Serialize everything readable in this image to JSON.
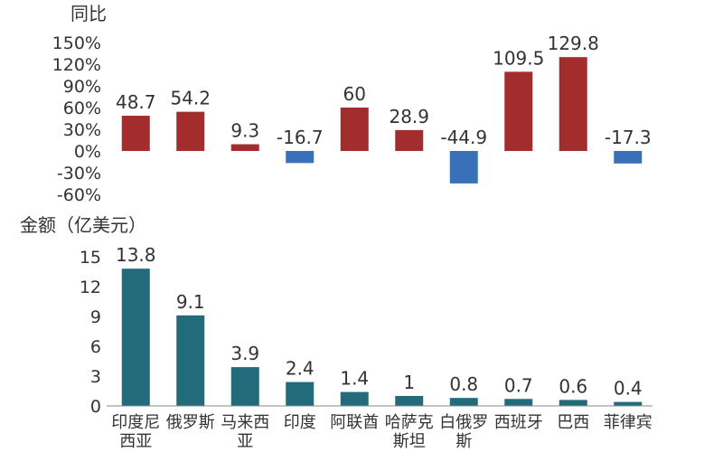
{
  "chart_data": [
    {
      "type": "bar",
      "ylabel": "同比",
      "categories": [
        "印度尼西亚",
        "俄罗斯",
        "马来西亚",
        "印度",
        "阿联酋",
        "哈萨克斯坦",
        "白俄罗斯",
        "西班牙",
        "巴西",
        "菲律宾"
      ],
      "values": [
        48.7,
        54.2,
        9.3,
        -16.7,
        60,
        28.9,
        -44.9,
        109.5,
        129.8,
        -17.3
      ],
      "data_labels": [
        "48.7",
        "54.2",
        "9.3",
        "-16.7",
        "60",
        "28.9",
        "-44.9",
        "109.5",
        "129.8",
        "-17.3"
      ],
      "yticks": [
        "-60%",
        "-30%",
        "0%",
        "30%",
        "60%",
        "90%",
        "120%",
        "150%"
      ],
      "ylim": [
        -60,
        150
      ],
      "colors": {
        "positive": "#A32C2C",
        "negative": "#3A70B8"
      },
      "grid": false
    },
    {
      "type": "bar",
      "ylabel": "金额（亿美元）",
      "categories": [
        "印度尼西亚",
        "俄罗斯",
        "马来西亚",
        "印度",
        "阿联酋",
        "哈萨克斯坦",
        "白俄罗斯",
        "西班牙",
        "巴西",
        "菲律宾"
      ],
      "category_lines": [
        [
          "印度尼",
          "西亚"
        ],
        [
          "俄罗斯"
        ],
        [
          "马来西",
          "亚"
        ],
        [
          "印度"
        ],
        [
          "阿联酋"
        ],
        [
          "哈萨克",
          "斯坦"
        ],
        [
          "白俄罗",
          "斯"
        ],
        [
          "西班牙"
        ],
        [
          "巴西"
        ],
        [
          "菲律宾"
        ]
      ],
      "values": [
        13.8,
        9.1,
        3.9,
        2.4,
        1.4,
        1,
        0.8,
        0.7,
        0.6,
        0.4
      ],
      "data_labels": [
        "13.8",
        "9.1",
        "3.9",
        "2.4",
        "1.4",
        "1",
        "0.8",
        "0.7",
        "0.6",
        "0.4"
      ],
      "yticks": [
        "0",
        "3",
        "6",
        "9",
        "12",
        "15"
      ],
      "ylim": [
        0,
        15
      ],
      "colors": {
        "bar": "#236B7B"
      },
      "grid": false
    }
  ]
}
